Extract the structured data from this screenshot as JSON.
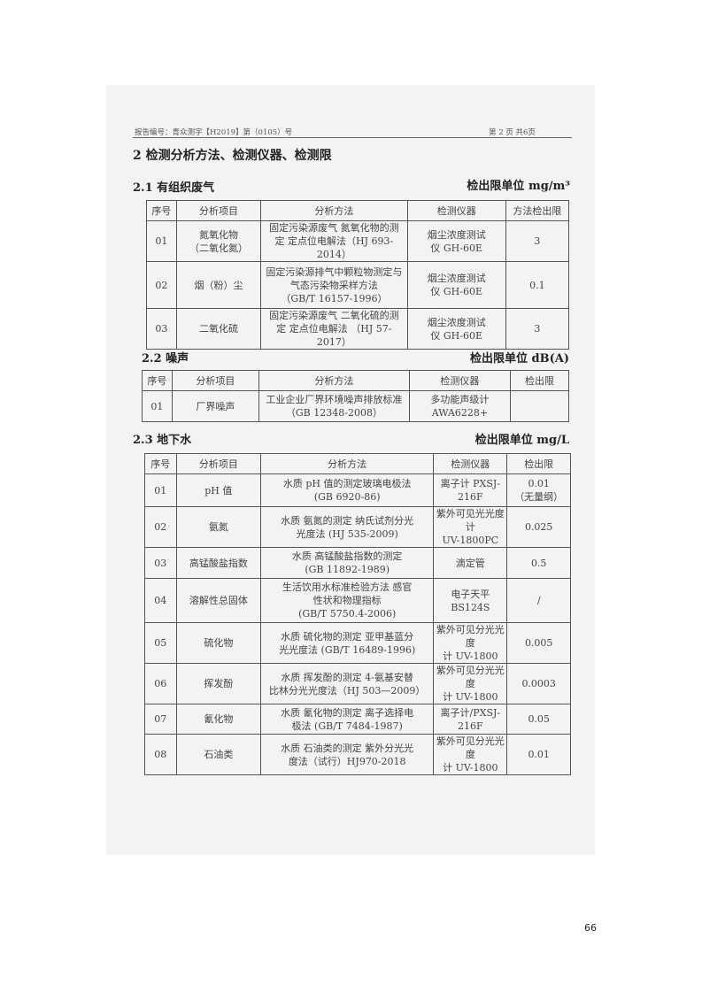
{
  "header": {
    "report_no": "报告编号：青众测字【H2019】第（0105）号",
    "page_info": "第 2 页 共6页"
  },
  "section_title": "2 检测分析方法、检测仪器、检测限",
  "sections": [
    {
      "title": "2.1 有组织废气",
      "unit": "检出限单位 mg/m³",
      "columns": [
        "序号",
        "分析项目",
        "分析方法",
        "检测仪器",
        "方法检出限"
      ],
      "rows": [
        [
          "01",
          "氮氧化物\n（二氧化氮）",
          "固定污染源废气 氮氧化物的测\n定 定点位电解法（HJ 693-2014）",
          "烟尘浓度测试\n仪 GH-60E",
          "3"
        ],
        [
          "02",
          "烟（粉）尘",
          "固定污染源排气中颗粒物测定与\n气态污染物采样方法\n（GB/T 16157-1996）",
          "烟尘浓度测试\n仪 GH-60E",
          "0.1"
        ],
        [
          "03",
          "二氧化硫",
          "固定污染源废气 二氧化硫的测\n定 定点位电解法 （HJ 57-2017）",
          "烟尘浓度测试\n仪 GH-60E",
          "3"
        ]
      ]
    },
    {
      "title": "2.2 噪声",
      "unit": "检出限单位 dB(A)",
      "columns": [
        "序号",
        "分析项目",
        "分析方法",
        "检测仪器",
        "检出限"
      ],
      "rows": [
        [
          "01",
          "厂界噪声",
          "工业企业厂界环境噪声排放标准\n（GB 12348-2008）",
          "多功能声级计\nAWA6228+",
          ""
        ]
      ]
    },
    {
      "title": "2.3 地下水",
      "unit": "检出限单位 mg/L",
      "columns": [
        "序号",
        "分析项目",
        "分析方法",
        "检测仪器",
        "检出限"
      ],
      "rows": [
        [
          "01",
          "pH 值",
          "水质 pH 值的测定玻璃电极法\n(GB 6920-86)",
          "离子计 PXSJ-216F",
          "0.01\n（无量纲）"
        ],
        [
          "02",
          "氨氮",
          "水质 氨氮的测定 纳氏试剂分光\n光度法 (HJ 535-2009)",
          "紫外可见光光度计\nUV-1800PC",
          "0.025"
        ],
        [
          "03",
          "高锰酸盐指数",
          "水质 高锰酸盐指数的测定\n(GB 11892-1989)",
          "滴定管",
          "0.5"
        ],
        [
          "04",
          "溶解性总固体",
          "生活饮用水标准检验方法 感官\n性状和物理指标\n(GB/T 5750.4-2006)",
          "电子天平 BS124S",
          "/"
        ],
        [
          "05",
          "硫化物",
          "水质 硫化物的测定 亚甲基蓝分\n光光度法 (GB/T 16489-1996)",
          "紫外可见分光光度\n计 UV-1800",
          "0.005"
        ],
        [
          "06",
          "挥发酚",
          "水质 挥发酚的测定 4-氨基安替\n比林分光光度法（HJ 503—2009）",
          "紫外可见分光光度\n计 UV-1800",
          "0.0003"
        ],
        [
          "07",
          "氰化物",
          "水质 氰化物的测定 离子选择电\n极法 (GB/T 7484-1987)",
          "离子计/PXSJ-216F",
          "0.05"
        ],
        [
          "08",
          "石油类",
          "水质 石油类的测定 紫外分光光\n度法（试行）HJ970-2018",
          "紫外可见分光光度\n计 UV-1800",
          "0.01"
        ]
      ]
    }
  ],
  "page_number": "66"
}
